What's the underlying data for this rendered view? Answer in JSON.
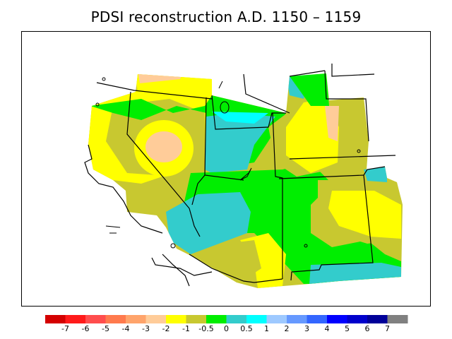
{
  "title": "PDSI reconstruction A.D. 1150 – 1159",
  "legend": {
    "colors": [
      "#d40000",
      "#ff1a1a",
      "#ff4d4d",
      "#ff7a4d",
      "#ffa46b",
      "#ffcc99",
      "#ffff00",
      "#c8c830",
      "#00ee00",
      "#33cccc",
      "#00ffff",
      "#9ec9ff",
      "#6699ff",
      "#3366ff",
      "#0000ff",
      "#0000cc",
      "#000099",
      "#808080"
    ],
    "labels": [
      "-7",
      "-6",
      "-5",
      "-4",
      "-3",
      "-2",
      "-1",
      "-0.5",
      "0",
      "0.5",
      "1",
      "2",
      "3",
      "4",
      "5",
      "6",
      "7"
    ]
  }
}
